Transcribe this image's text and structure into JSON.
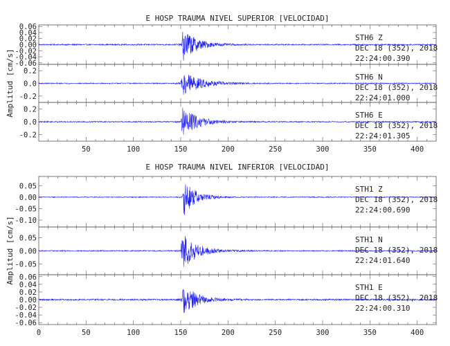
{
  "chart_data": [
    {
      "type": "line",
      "title": "E HOSP TRAUMA NIVEL SUPERIOR [VELOCIDAD]",
      "ylabel": "Amplitud [cm/s]",
      "xlim": [
        0,
        420
      ],
      "x_ticks": [
        "50",
        "100",
        "150",
        "200",
        "250",
        "300",
        "350",
        "400"
      ],
      "series": [
        {
          "station": "STH6",
          "component": "Z",
          "date": "DEC 18 (352), 2018",
          "time": "22:24:00.390",
          "ylim": [
            -0.065,
            0.065
          ],
          "y_ticks": [
            "0.06",
            "0.04",
            "0.02",
            "0.00",
            "-0.02",
            "-0.04",
            "-0.06"
          ],
          "onset_x": 151,
          "noise_amp": 0.002,
          "peak_amp": 0.06,
          "decay": 14
        },
        {
          "station": "STH6",
          "component": "N",
          "date": "DEC 18 (352), 2018",
          "time": "22:24:01.000",
          "ylim": [
            -0.3,
            0.3
          ],
          "y_ticks": [
            "0.2",
            "0.0",
            "-0.2"
          ],
          "onset_x": 150,
          "noise_amp": 0.008,
          "peak_amp": 0.22,
          "decay": 18
        },
        {
          "station": "STH6",
          "component": "E",
          "date": "DEC 18 (352), 2018",
          "time": "22:24:01.305",
          "ylim": [
            -0.3,
            0.3
          ],
          "y_ticks": [
            "0.2",
            "0.0",
            "-0.2"
          ],
          "onset_x": 150,
          "noise_amp": 0.008,
          "peak_amp": 0.26,
          "decay": 16
        }
      ]
    },
    {
      "type": "line",
      "title": "E HOSP TRAUMA NIVEL INFERIOR [VELOCIDAD]",
      "ylabel": "Amplitud [cm/s]",
      "xlim": [
        0,
        420
      ],
      "x_ticks": [
        "0",
        "50",
        "100",
        "150",
        "200",
        "250",
        "300",
        "350",
        "400"
      ],
      "series": [
        {
          "station": "STH1",
          "component": "Z",
          "date": "DEC 18 (352), 2018",
          "time": "22:24:00.690",
          "ylim": [
            -0.13,
            0.09
          ],
          "y_ticks": [
            "0.05",
            "0.00",
            "-0.05",
            "-0.10"
          ],
          "onset_x": 152,
          "noise_amp": 0.002,
          "peak_amp": 0.09,
          "decay": 12
        },
        {
          "station": "STH1",
          "component": "N",
          "date": "DEC 18 (352), 2018",
          "time": "22:24:01.640",
          "ylim": [
            -0.09,
            0.09
          ],
          "y_ticks": [
            "0.05",
            "0.00",
            "-0.05"
          ],
          "onset_x": 150,
          "noise_amp": 0.002,
          "peak_amp": 0.08,
          "decay": 15
        },
        {
          "station": "STH1",
          "component": "E",
          "date": "DEC 18 (352), 2018",
          "time": "22:24:00.310",
          "ylim": [
            -0.065,
            0.065
          ],
          "y_ticks": [
            "0.06",
            "0.04",
            "0.02",
            "0.00",
            "-0.02",
            "-0.04",
            "-0.06"
          ],
          "onset_x": 151,
          "noise_amp": 0.002,
          "peak_amp": 0.05,
          "decay": 13
        }
      ]
    }
  ],
  "trace_color": "#1a1aff"
}
